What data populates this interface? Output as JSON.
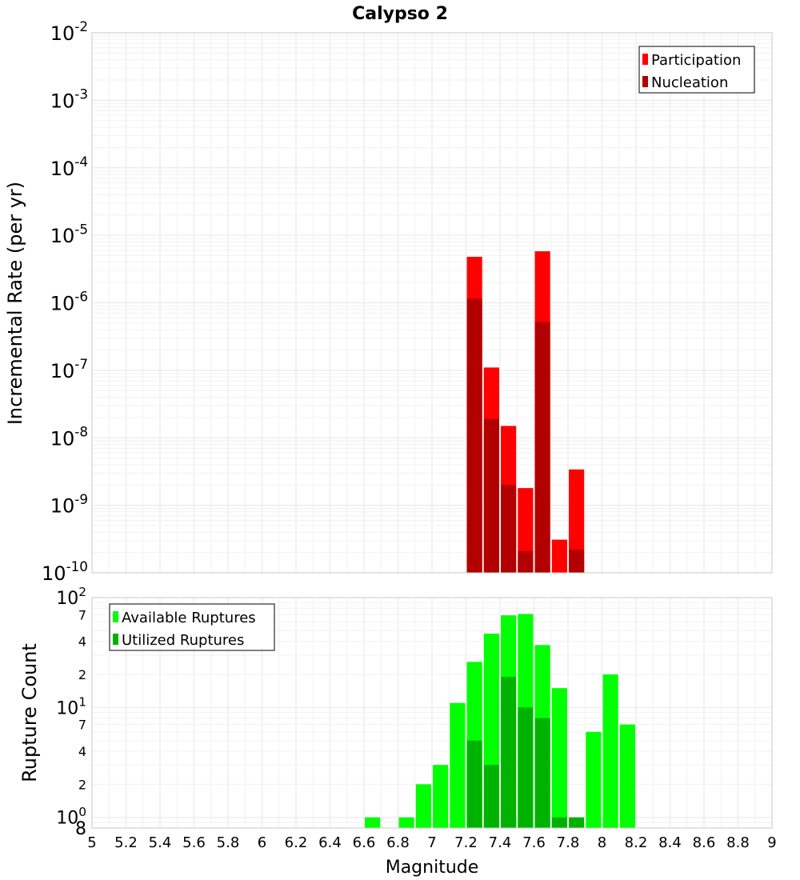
{
  "colors": {
    "participation": "#ff0000",
    "nucleation": "#b20000",
    "available": "#00ff00",
    "utilized": "#00b200",
    "plot_border": "#c8c8c8",
    "legend_border": "#000000"
  },
  "chart_data": [
    {
      "type": "bar",
      "title": "Calypso 2",
      "ylabel": "Incremental Rate (per yr)",
      "xlabel": "",
      "y_scale": "log",
      "ylim": [
        1e-10,
        0.01
      ],
      "xlim": [
        5,
        9
      ],
      "y_ticks": [
        {
          "base": "10",
          "exp": "-10"
        },
        {
          "base": "10",
          "exp": "-9"
        },
        {
          "base": "10",
          "exp": "-8"
        },
        {
          "base": "10",
          "exp": "-7"
        },
        {
          "base": "10",
          "exp": "-6"
        },
        {
          "base": "10",
          "exp": "-5"
        },
        {
          "base": "10",
          "exp": "-4"
        },
        {
          "base": "10",
          "exp": "-3"
        },
        {
          "base": "10",
          "exp": "-2"
        }
      ],
      "legend": {
        "position": "top-right",
        "entries": [
          "Participation",
          "Nucleation"
        ]
      },
      "series": [
        {
          "name": "Participation",
          "x": [
            7.25,
            7.35,
            7.45,
            7.55,
            7.65,
            7.75,
            7.85
          ],
          "values": [
            4.8e-06,
            1.1e-07,
            1.5e-08,
            1.8e-09,
            5.8e-06,
            3.1e-10,
            3.4e-09
          ]
        },
        {
          "name": "Nucleation",
          "x": [
            7.25,
            7.35,
            7.45,
            7.55,
            7.65,
            7.75,
            7.85
          ],
          "values": [
            1.15e-06,
            1.9e-08,
            2e-09,
            2.1e-10,
            5.2e-07,
            1e-10,
            2.2e-10
          ]
        }
      ],
      "bar_width": 0.09
    },
    {
      "type": "bar",
      "title": "",
      "ylabel": "Rupture Count",
      "xlabel": "Magnitude",
      "y_scale": "log",
      "ylim": [
        0.8,
        100
      ],
      "xlim": [
        5,
        9
      ],
      "x_ticks": [
        "5",
        "5.2",
        "5.4",
        "5.6",
        "5.8",
        "6",
        "6.2",
        "6.4",
        "6.6",
        "6.8",
        "7",
        "7.2",
        "7.4",
        "7.6",
        "7.8",
        "8",
        "8.2",
        "8.4",
        "8.6",
        "8.8",
        "9"
      ],
      "y_ticks": [
        {
          "value": 0.8,
          "label": "8",
          "exp": ""
        },
        {
          "value": 1,
          "label": "10",
          "exp": "0"
        },
        {
          "value": 2,
          "label": "2",
          "exp": ""
        },
        {
          "value": 4,
          "label": "4",
          "exp": ""
        },
        {
          "value": 7,
          "label": "7",
          "exp": ""
        },
        {
          "value": 10,
          "label": "10",
          "exp": "1"
        },
        {
          "value": 20,
          "label": "2",
          "exp": ""
        },
        {
          "value": 40,
          "label": "4",
          "exp": ""
        },
        {
          "value": 70,
          "label": "7",
          "exp": ""
        },
        {
          "value": 100,
          "label": "10",
          "exp": "2"
        }
      ],
      "legend": {
        "position": "top-left",
        "entries": [
          "Available Ruptures",
          "Utilized Ruptures"
        ]
      },
      "series": [
        {
          "name": "Available Ruptures",
          "x": [
            6.65,
            6.85,
            6.95,
            7.05,
            7.15,
            7.25,
            7.35,
            7.45,
            7.55,
            7.65,
            7.75,
            7.95,
            8.05,
            8.15
          ],
          "values": [
            1,
            1,
            2,
            3,
            11,
            26,
            47,
            69,
            71,
            37,
            15,
            6,
            20,
            7
          ]
        },
        {
          "name": "Utilized Ruptures",
          "x": [
            7.25,
            7.35,
            7.45,
            7.55,
            7.65,
            7.75,
            7.85
          ],
          "values": [
            5,
            3,
            19,
            10,
            8,
            1,
            1
          ]
        }
      ],
      "bar_width": 0.09
    }
  ]
}
